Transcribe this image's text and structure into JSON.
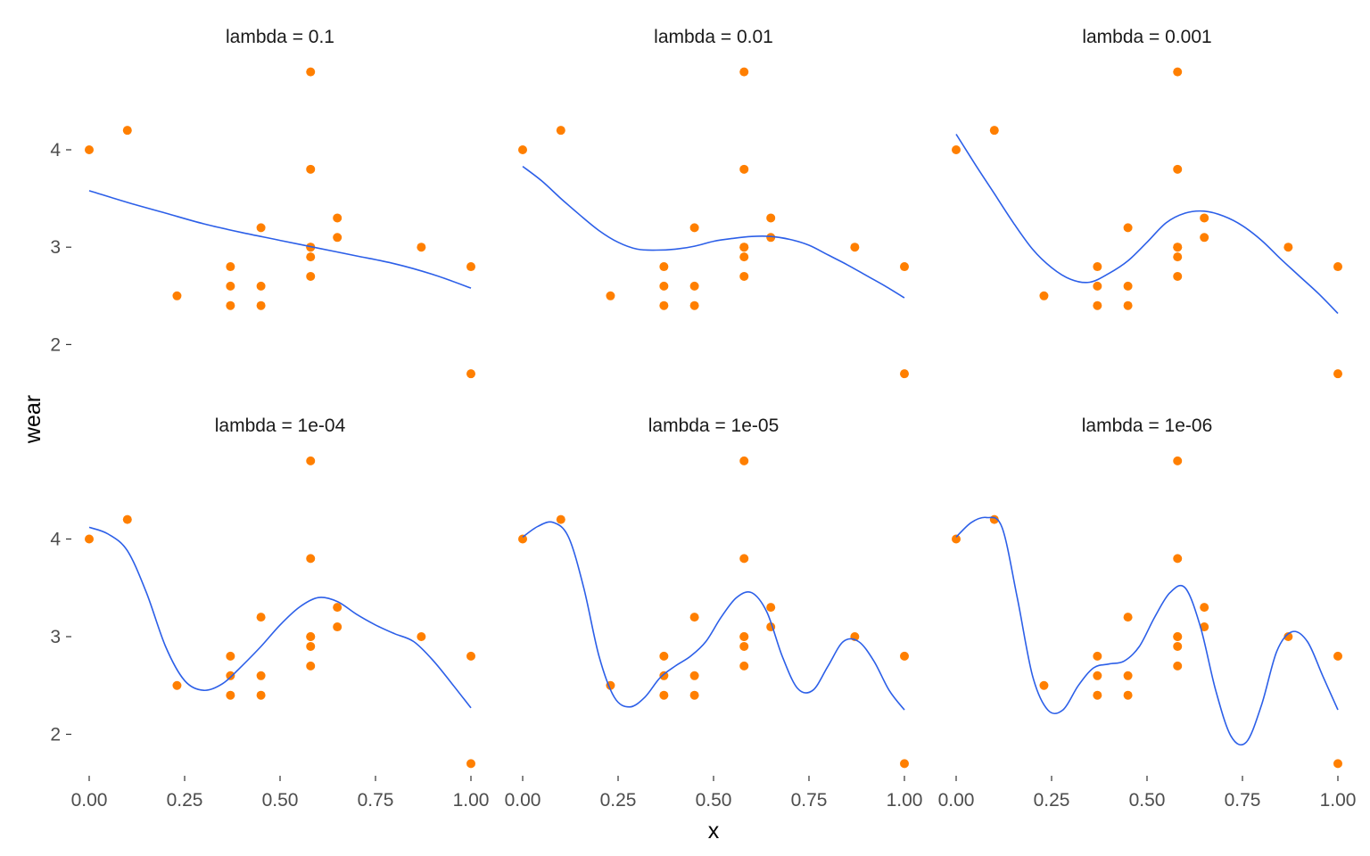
{
  "chart_data": {
    "type": "scatter",
    "xlabel": "x",
    "ylabel": "wear",
    "xlim": [
      0,
      1
    ],
    "ylim": [
      1.6,
      4.9
    ],
    "x_ticks": [
      "0.00",
      "0.25",
      "0.50",
      "0.75",
      "1.00"
    ],
    "y_ticks": [
      "2",
      "3",
      "4"
    ],
    "grid": false,
    "colors": {
      "points": "#FF7F00",
      "line": "#2C5FE8"
    },
    "points": {
      "x": [
        0.0,
        0.1,
        0.23,
        0.37,
        0.37,
        0.37,
        0.45,
        0.45,
        0.45,
        0.58,
        0.58,
        0.58,
        0.58,
        0.58,
        0.58,
        0.65,
        0.65,
        0.87,
        1.0,
        1.0
      ],
      "y": [
        4.0,
        4.2,
        2.5,
        2.8,
        2.6,
        2.4,
        3.2,
        2.6,
        2.4,
        4.8,
        3.8,
        3.0,
        2.9,
        2.7,
        3.0,
        3.3,
        3.1,
        3.0,
        2.8,
        1.7
      ]
    },
    "panels": [
      {
        "title": "lambda = 0.1",
        "fit": {
          "x": [
            0,
            0.1,
            0.2,
            0.3,
            0.4,
            0.5,
            0.6,
            0.7,
            0.8,
            0.9,
            1.0
          ],
          "y": [
            3.58,
            3.46,
            3.35,
            3.24,
            3.15,
            3.07,
            2.99,
            2.91,
            2.83,
            2.72,
            2.58
          ]
        }
      },
      {
        "title": "lambda = 0.01",
        "fit": {
          "x": [
            0,
            0.05,
            0.1,
            0.15,
            0.2,
            0.25,
            0.3,
            0.35,
            0.4,
            0.45,
            0.5,
            0.55,
            0.6,
            0.65,
            0.7,
            0.75,
            0.8,
            0.85,
            0.9,
            0.95,
            1.0
          ],
          "y": [
            3.83,
            3.68,
            3.5,
            3.33,
            3.17,
            3.05,
            2.98,
            2.97,
            2.98,
            3.01,
            3.06,
            3.09,
            3.11,
            3.11,
            3.08,
            3.02,
            2.92,
            2.82,
            2.71,
            2.6,
            2.48
          ]
        }
      },
      {
        "title": "lambda = 0.001",
        "fit": {
          "x": [
            0,
            0.05,
            0.1,
            0.15,
            0.2,
            0.25,
            0.3,
            0.35,
            0.4,
            0.45,
            0.5,
            0.55,
            0.6,
            0.65,
            0.7,
            0.75,
            0.8,
            0.85,
            0.9,
            0.95,
            1.0
          ],
          "y": [
            4.16,
            3.85,
            3.55,
            3.25,
            2.98,
            2.79,
            2.67,
            2.64,
            2.73,
            2.86,
            3.05,
            3.25,
            3.35,
            3.37,
            3.32,
            3.22,
            3.07,
            2.88,
            2.7,
            2.52,
            2.32
          ]
        }
      },
      {
        "title": "lambda = 1e-04",
        "fit": {
          "x": [
            0,
            0.05,
            0.1,
            0.15,
            0.2,
            0.25,
            0.3,
            0.35,
            0.4,
            0.45,
            0.5,
            0.55,
            0.6,
            0.65,
            0.7,
            0.75,
            0.8,
            0.85,
            0.9,
            0.95,
            1.0
          ],
          "y": [
            4.12,
            4.05,
            3.88,
            3.45,
            2.9,
            2.55,
            2.45,
            2.52,
            2.7,
            2.9,
            3.12,
            3.3,
            3.4,
            3.36,
            3.23,
            3.12,
            3.03,
            2.95,
            2.76,
            2.52,
            2.27
          ]
        }
      },
      {
        "title": "lambda = 1e-05",
        "fit": {
          "x": [
            0,
            0.04,
            0.08,
            0.12,
            0.16,
            0.2,
            0.24,
            0.28,
            0.32,
            0.36,
            0.4,
            0.44,
            0.48,
            0.52,
            0.56,
            0.6,
            0.64,
            0.68,
            0.72,
            0.76,
            0.8,
            0.84,
            0.88,
            0.92,
            0.96,
            1.0
          ],
          "y": [
            4.02,
            4.13,
            4.17,
            4.02,
            3.5,
            2.8,
            2.38,
            2.28,
            2.38,
            2.58,
            2.7,
            2.8,
            2.95,
            3.2,
            3.4,
            3.45,
            3.25,
            2.8,
            2.47,
            2.45,
            2.7,
            2.95,
            2.95,
            2.75,
            2.45,
            2.25
          ]
        }
      },
      {
        "title": "lambda = 1e-06",
        "fit": {
          "x": [
            0,
            0.04,
            0.08,
            0.12,
            0.16,
            0.2,
            0.24,
            0.28,
            0.32,
            0.36,
            0.4,
            0.44,
            0.48,
            0.52,
            0.56,
            0.6,
            0.64,
            0.68,
            0.72,
            0.76,
            0.8,
            0.84,
            0.88,
            0.92,
            0.96,
            1.0
          ],
          "y": [
            4.02,
            4.17,
            4.22,
            4.12,
            3.4,
            2.6,
            2.25,
            2.25,
            2.5,
            2.68,
            2.72,
            2.75,
            2.9,
            3.2,
            3.45,
            3.5,
            3.1,
            2.45,
            1.98,
            1.92,
            2.3,
            2.85,
            3.05,
            2.95,
            2.6,
            2.25
          ]
        }
      }
    ]
  }
}
